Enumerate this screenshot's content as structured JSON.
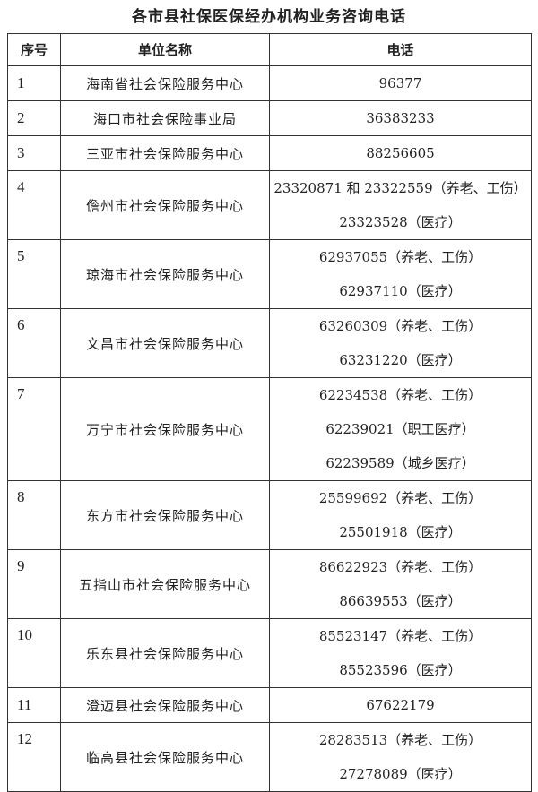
{
  "title": "各市县社保医保经办机构业务咨询电话",
  "headers": [
    "序号",
    "单位名称",
    "电话"
  ],
  "rows": [
    {
      "no": "1",
      "name": "海南省社会保险服务中心",
      "phones": [
        "96377"
      ]
    },
    {
      "no": "2",
      "name": "海口市社会保险事业局",
      "phones": [
        "36383233"
      ]
    },
    {
      "no": "3",
      "name": "三亚市社会保险服务中心",
      "phones": [
        "88256605"
      ]
    },
    {
      "no": "4",
      "name": "儋州市社会保险服务中心",
      "phones": [
        "23320871 和 23322559（养老、工伤）",
        "23323528（医疗）"
      ]
    },
    {
      "no": "5",
      "name": "琼海市社会保险服务中心",
      "phones": [
        "62937055（养老、工伤）",
        "62937110（医疗）"
      ]
    },
    {
      "no": "6",
      "name": "文昌市社会保险服务中心",
      "phones": [
        "63260309（养老、工伤）",
        "63231220（医疗）"
      ]
    },
    {
      "no": "7",
      "name": "万宁市社会保险服务中心",
      "phones": [
        "62234538（养老、工伤）",
        "62239021（职工医疗）",
        "62239589（城乡医疗）"
      ]
    },
    {
      "no": "8",
      "name": "东方市社会保险服务中心",
      "phones": [
        "25599692（养老、工伤）",
        "25501918（医疗）"
      ]
    },
    {
      "no": "9",
      "name": "五指山市社会保险服务中心",
      "phones": [
        "86622923（养老、工伤）",
        "86639553（医疗）"
      ]
    },
    {
      "no": "10",
      "name": "乐东县社会保险服务中心",
      "phones": [
        "85523147（养老、工伤）",
        "85523596（医疗）"
      ]
    },
    {
      "no": "11",
      "name": "澄迈县社会保险服务中心",
      "phones": [
        "67622179"
      ]
    },
    {
      "no": "12",
      "name": "临高县社会保险服务中心",
      "phones": [
        "28283513（养老、工伤）",
        "27278089（医疗）"
      ]
    }
  ]
}
